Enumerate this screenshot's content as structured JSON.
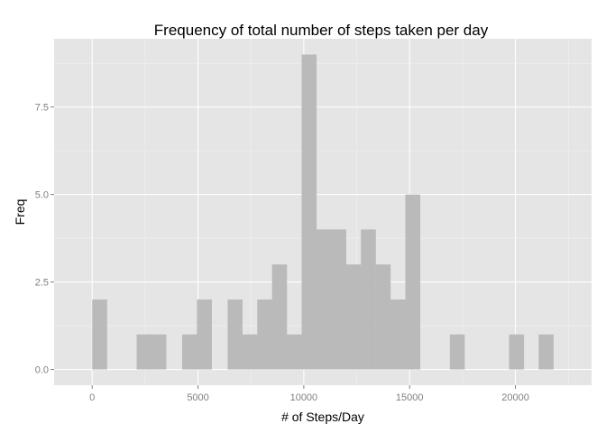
{
  "chart_data": {
    "type": "bar",
    "title": "Frequency of total number of steps taken per day",
    "xlabel": "# of Steps/Day",
    "ylabel": "Freq",
    "bin_width": 706,
    "xlim": [
      -1800,
      23600
    ],
    "ylim": [
      -0.45,
      9.45
    ],
    "xticks": [
      0,
      5000,
      10000,
      15000,
      20000
    ],
    "xtick_labels": [
      "0",
      "5000",
      "10000",
      "15000",
      "20000"
    ],
    "yticks": [
      0,
      2.5,
      5,
      7.5
    ],
    "ytick_labels": [
      "0.0",
      "2.5",
      "5.0",
      "7.5"
    ],
    "grid": true,
    "legend": "none",
    "bins": [
      {
        "x": 0,
        "count": 2
      },
      {
        "x": 2100,
        "count": 1
      },
      {
        "x": 2800,
        "count": 1
      },
      {
        "x": 4250,
        "count": 1
      },
      {
        "x": 4950,
        "count": 2
      },
      {
        "x": 6400,
        "count": 2
      },
      {
        "x": 7100,
        "count": 1
      },
      {
        "x": 7800,
        "count": 2
      },
      {
        "x": 8500,
        "count": 3
      },
      {
        "x": 9200,
        "count": 1
      },
      {
        "x": 9900,
        "count": 9
      },
      {
        "x": 10600,
        "count": 4
      },
      {
        "x": 11300,
        "count": 4
      },
      {
        "x": 12000,
        "count": 3
      },
      {
        "x": 12700,
        "count": 4
      },
      {
        "x": 13400,
        "count": 3
      },
      {
        "x": 14100,
        "count": 2
      },
      {
        "x": 14800,
        "count": 5
      },
      {
        "x": 16900,
        "count": 1
      },
      {
        "x": 19700,
        "count": 1
      },
      {
        "x": 21100,
        "count": 1
      }
    ],
    "colors": {
      "panel_background": "#e5e5e5",
      "grid_major": "#ffffff",
      "grid_minor": "#f2f2f2",
      "bar_fill": "#bababa",
      "tick_text": "#7f7f7f",
      "tick_mark": "#7f7f7f"
    }
  }
}
